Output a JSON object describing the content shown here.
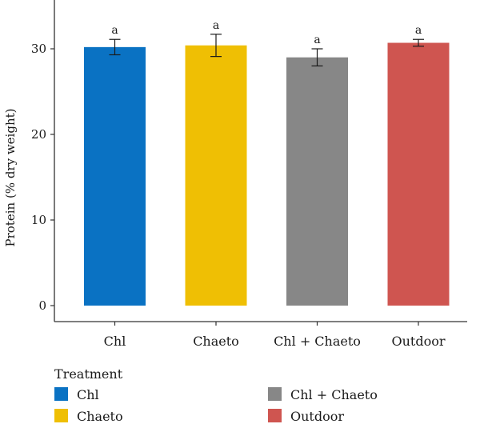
{
  "chart_data": {
    "type": "bar",
    "categories": [
      "Chl",
      "Chaeto",
      "Chl + Chaeto",
      "Outdoor"
    ],
    "values": [
      30.2,
      30.4,
      29.0,
      30.7
    ],
    "error": [
      0.9,
      1.3,
      1.0,
      0.4
    ],
    "significance": [
      "a",
      "a",
      "a",
      "a"
    ],
    "colors": [
      "#0a72c3",
      "#efbf04",
      "#878787",
      "#cf5550"
    ],
    "xlabel": "",
    "ylabel": "Protein (% dry weight)",
    "ylim": [
      0,
      35
    ],
    "yticks": [
      0,
      10,
      20,
      30
    ],
    "grid": false,
    "legend": {
      "title": "Treatment",
      "placement": "bottom",
      "items": [
        "Chl",
        "Chaeto",
        "Chl + Chaeto",
        "Outdoor"
      ]
    }
  }
}
